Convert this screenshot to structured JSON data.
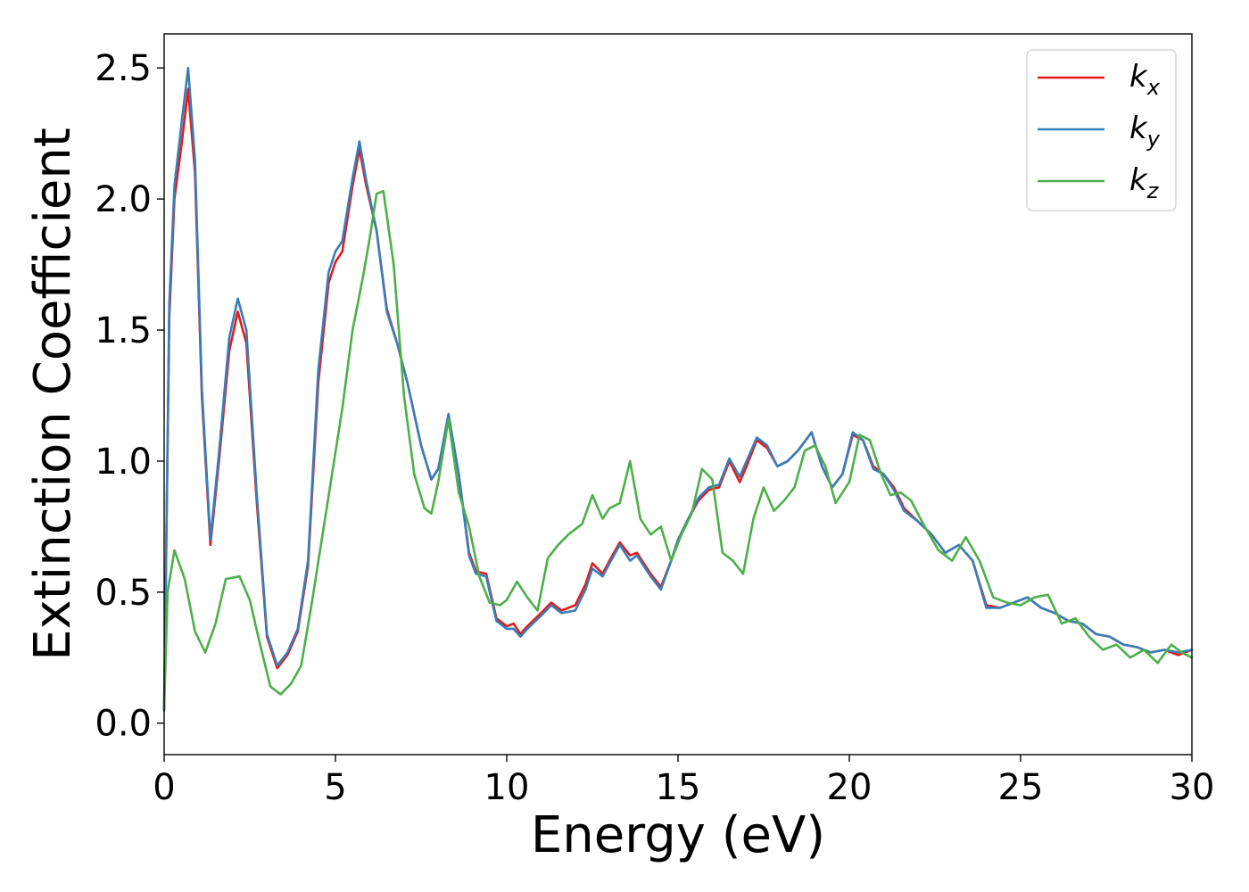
{
  "chart_data": {
    "type": "line",
    "title": "",
    "xlabel": "Energy (eV)",
    "ylabel": "Extinction Coefficient",
    "xlim": [
      0,
      30
    ],
    "ylim": [
      -0.12,
      2.63
    ],
    "xticks": [
      0,
      5,
      10,
      15,
      20,
      25,
      30
    ],
    "xtick_labels": [
      "0",
      "5",
      "10",
      "15",
      "20",
      "25",
      "30"
    ],
    "yticks": [
      0.0,
      0.5,
      1.0,
      1.5,
      2.0,
      2.5
    ],
    "ytick_labels": [
      "0.0",
      "0.5",
      "1.0",
      "1.5",
      "2.0",
      "2.5"
    ],
    "grid": false,
    "legend_position": "top-right",
    "series": [
      {
        "name": "k",
        "subscript": "x",
        "color": "#e41a1c",
        "x": [
          0,
          0.15,
          0.3,
          0.5,
          0.7,
          0.9,
          1.1,
          1.35,
          1.6,
          1.9,
          2.15,
          2.4,
          2.7,
          3.0,
          3.3,
          3.6,
          3.9,
          4.2,
          4.5,
          4.8,
          5.0,
          5.2,
          5.5,
          5.7,
          5.9,
          6.2,
          6.5,
          6.8,
          7.1,
          7.5,
          7.8,
          8.0,
          8.3,
          8.6,
          8.9,
          9.1,
          9.4,
          9.7,
          10.0,
          10.2,
          10.4,
          10.6,
          11.0,
          11.3,
          11.6,
          12.0,
          12.3,
          12.5,
          12.8,
          13.0,
          13.3,
          13.6,
          13.8,
          14.2,
          14.5,
          14.8,
          15.0,
          15.3,
          15.6,
          15.9,
          16.2,
          16.5,
          16.8,
          17.0,
          17.3,
          17.6,
          17.9,
          18.2,
          18.5,
          18.9,
          19.2,
          19.5,
          19.8,
          20.1,
          20.4,
          20.7,
          21.0,
          21.3,
          21.6,
          22.0,
          22.4,
          22.8,
          23.2,
          23.6,
          24.0,
          24.4,
          24.8,
          25.2,
          25.6,
          26.0,
          26.4,
          26.8,
          27.2,
          27.6,
          28.0,
          28.4,
          28.8,
          29.2,
          29.6,
          30.0
        ],
        "y": [
          0.05,
          1.55,
          2.0,
          2.2,
          2.42,
          2.1,
          1.25,
          0.68,
          1.0,
          1.42,
          1.57,
          1.45,
          0.85,
          0.33,
          0.21,
          0.26,
          0.35,
          0.6,
          1.3,
          1.68,
          1.76,
          1.8,
          2.05,
          2.19,
          2.05,
          1.88,
          1.58,
          1.45,
          1.3,
          1.06,
          0.93,
          0.97,
          1.17,
          0.95,
          0.65,
          0.58,
          0.57,
          0.4,
          0.37,
          0.38,
          0.34,
          0.37,
          0.42,
          0.46,
          0.43,
          0.45,
          0.53,
          0.61,
          0.57,
          0.62,
          0.69,
          0.64,
          0.65,
          0.57,
          0.52,
          0.62,
          0.7,
          0.78,
          0.85,
          0.89,
          0.9,
          1.0,
          0.92,
          0.98,
          1.08,
          1.05,
          0.98,
          1.0,
          1.04,
          1.11,
          0.98,
          0.9,
          0.95,
          1.1,
          1.08,
          0.98,
          0.95,
          0.9,
          0.82,
          0.77,
          0.72,
          0.65,
          0.68,
          0.62,
          0.45,
          0.44,
          0.46,
          0.48,
          0.44,
          0.42,
          0.39,
          0.38,
          0.34,
          0.33,
          0.3,
          0.29,
          0.27,
          0.28,
          0.26,
          0.28
        ]
      },
      {
        "name": "k",
        "subscript": "y",
        "color": "#377eb8",
        "x": [
          0,
          0.15,
          0.3,
          0.5,
          0.7,
          0.9,
          1.1,
          1.35,
          1.6,
          1.9,
          2.15,
          2.4,
          2.7,
          3.0,
          3.3,
          3.6,
          3.9,
          4.2,
          4.5,
          4.8,
          5.0,
          5.2,
          5.5,
          5.7,
          5.9,
          6.2,
          6.5,
          6.8,
          7.1,
          7.5,
          7.8,
          8.0,
          8.3,
          8.6,
          8.9,
          9.1,
          9.4,
          9.7,
          10.0,
          10.2,
          10.4,
          10.6,
          11.0,
          11.3,
          11.6,
          12.0,
          12.3,
          12.5,
          12.8,
          13.0,
          13.3,
          13.6,
          13.8,
          14.2,
          14.5,
          14.8,
          15.0,
          15.3,
          15.6,
          15.9,
          16.2,
          16.5,
          16.8,
          17.0,
          17.3,
          17.6,
          17.9,
          18.2,
          18.5,
          18.9,
          19.2,
          19.5,
          19.8,
          20.1,
          20.4,
          20.7,
          21.0,
          21.3,
          21.6,
          22.0,
          22.4,
          22.8,
          23.2,
          23.6,
          24.0,
          24.4,
          24.8,
          25.2,
          25.6,
          26.0,
          26.4,
          26.8,
          27.2,
          27.6,
          28.0,
          28.4,
          28.8,
          29.2,
          29.6,
          30.0
        ],
        "y": [
          0.05,
          1.6,
          2.05,
          2.28,
          2.5,
          2.15,
          1.28,
          0.7,
          1.03,
          1.47,
          1.62,
          1.5,
          0.88,
          0.34,
          0.22,
          0.27,
          0.36,
          0.62,
          1.35,
          1.72,
          1.8,
          1.84,
          2.08,
          2.22,
          2.07,
          1.88,
          1.57,
          1.45,
          1.3,
          1.06,
          0.93,
          0.97,
          1.18,
          0.95,
          0.64,
          0.57,
          0.56,
          0.39,
          0.36,
          0.36,
          0.33,
          0.36,
          0.41,
          0.45,
          0.42,
          0.43,
          0.51,
          0.59,
          0.56,
          0.61,
          0.68,
          0.62,
          0.64,
          0.56,
          0.51,
          0.62,
          0.7,
          0.78,
          0.86,
          0.9,
          0.91,
          1.01,
          0.94,
          1.0,
          1.09,
          1.06,
          0.98,
          1.0,
          1.04,
          1.11,
          0.98,
          0.9,
          0.95,
          1.11,
          1.08,
          0.97,
          0.95,
          0.89,
          0.81,
          0.77,
          0.72,
          0.65,
          0.68,
          0.62,
          0.44,
          0.44,
          0.46,
          0.48,
          0.44,
          0.42,
          0.39,
          0.38,
          0.34,
          0.33,
          0.3,
          0.29,
          0.27,
          0.28,
          0.27,
          0.28
        ]
      },
      {
        "name": "k",
        "subscript": "z",
        "color": "#4daf4a",
        "x": [
          0,
          0.1,
          0.3,
          0.6,
          0.9,
          1.2,
          1.5,
          1.8,
          2.2,
          2.5,
          2.8,
          3.1,
          3.4,
          3.7,
          4.0,
          4.3,
          4.6,
          4.9,
          5.2,
          5.5,
          5.8,
          6.0,
          6.2,
          6.4,
          6.7,
          7.0,
          7.3,
          7.6,
          7.8,
          8.0,
          8.3,
          8.6,
          8.9,
          9.2,
          9.5,
          9.8,
          10.0,
          10.3,
          10.6,
          10.9,
          11.2,
          11.5,
          11.8,
          12.2,
          12.5,
          12.8,
          13.0,
          13.3,
          13.6,
          13.9,
          14.2,
          14.5,
          14.8,
          15.1,
          15.4,
          15.7,
          16.0,
          16.3,
          16.6,
          16.9,
          17.2,
          17.5,
          17.8,
          18.1,
          18.4,
          18.7,
          19.0,
          19.3,
          19.6,
          20.0,
          20.3,
          20.6,
          20.9,
          21.2,
          21.5,
          21.8,
          22.2,
          22.6,
          23.0,
          23.4,
          23.8,
          24.2,
          24.6,
          25.0,
          25.4,
          25.8,
          26.2,
          26.6,
          27.0,
          27.4,
          27.8,
          28.2,
          28.6,
          29.0,
          29.4,
          29.7,
          30.0
        ],
        "y": [
          0.05,
          0.5,
          0.66,
          0.55,
          0.35,
          0.27,
          0.38,
          0.55,
          0.56,
          0.47,
          0.3,
          0.14,
          0.11,
          0.15,
          0.22,
          0.45,
          0.7,
          0.95,
          1.2,
          1.5,
          1.7,
          1.85,
          2.02,
          2.03,
          1.75,
          1.25,
          0.95,
          0.82,
          0.8,
          0.92,
          1.16,
          0.88,
          0.75,
          0.56,
          0.46,
          0.45,
          0.47,
          0.54,
          0.48,
          0.43,
          0.63,
          0.68,
          0.72,
          0.76,
          0.87,
          0.78,
          0.82,
          0.84,
          1.0,
          0.78,
          0.72,
          0.75,
          0.62,
          0.72,
          0.8,
          0.97,
          0.93,
          0.65,
          0.62,
          0.57,
          0.78,
          0.9,
          0.81,
          0.85,
          0.9,
          1.04,
          1.06,
          0.98,
          0.84,
          0.92,
          1.1,
          1.08,
          0.96,
          0.87,
          0.88,
          0.85,
          0.75,
          0.66,
          0.62,
          0.71,
          0.62,
          0.48,
          0.46,
          0.45,
          0.48,
          0.49,
          0.38,
          0.4,
          0.33,
          0.28,
          0.3,
          0.25,
          0.28,
          0.23,
          0.3,
          0.27,
          0.25
        ]
      }
    ]
  }
}
